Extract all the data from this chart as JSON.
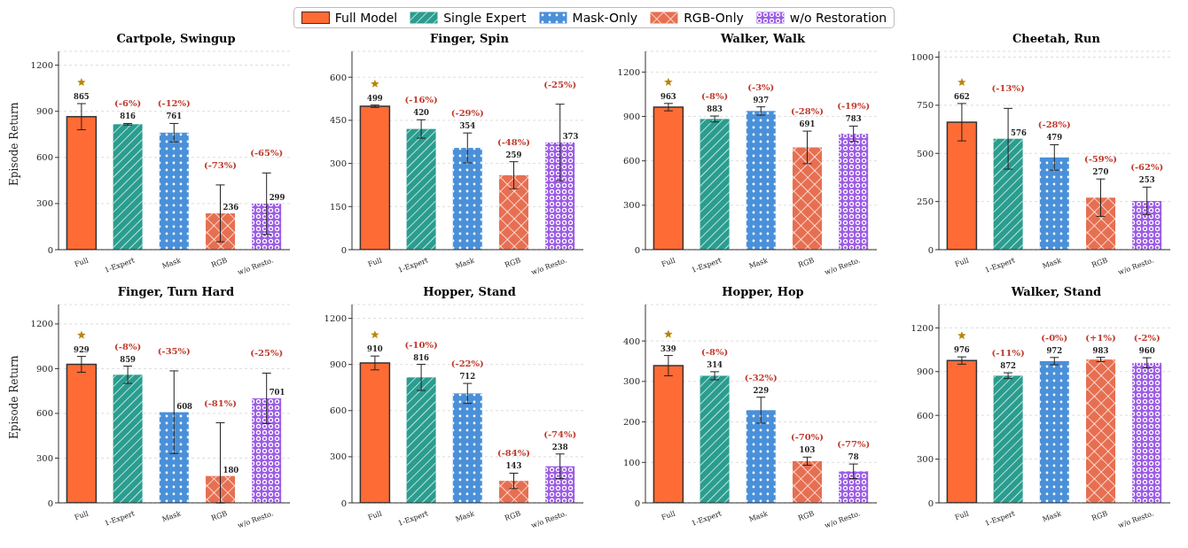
{
  "chart_data": [
    {
      "type": "bar",
      "title": "Cartpole, Swingup",
      "ylabel": "Episode Return",
      "legend": "top",
      "grid": "y",
      "data_labels": true,
      "categories": [
        "Full",
        "1-Expert",
        "Mask",
        "RGB",
        "w/o Resto."
      ],
      "ylim": [
        0,
        1290
      ],
      "yticks": [
        0,
        300,
        600,
        900,
        1200
      ],
      "series": [
        {
          "name": "Full Model",
          "color": "#ff6b35",
          "values": [
            865,
            null,
            null,
            null,
            null
          ],
          "errors": [
            85,
            null,
            null,
            null,
            null
          ]
        },
        {
          "name": "Single Expert",
          "color": "#2a9d8f",
          "values": [
            null,
            816,
            null,
            null,
            null
          ],
          "errors": [
            null,
            5,
            null,
            null,
            null
          ]
        },
        {
          "name": "Mask-Only",
          "color": "#4a90d9",
          "values": [
            null,
            null,
            761,
            null,
            null
          ],
          "errors": [
            null,
            null,
            60,
            null,
            null
          ]
        },
        {
          "name": "RGB-Only",
          "color": "#e76f51",
          "values": [
            null,
            null,
            null,
            236,
            null
          ],
          "errors": [
            null,
            null,
            null,
            185,
            null
          ]
        },
        {
          "name": "w/o Restoration",
          "color": "#9b5de5",
          "values": [
            null,
            null,
            null,
            null,
            299
          ],
          "errors": [
            null,
            null,
            null,
            null,
            200
          ]
        }
      ],
      "annotations": [
        "(-6%)",
        "(-12%)",
        "(-73%)",
        "(-65%)"
      ]
    },
    {
      "type": "bar",
      "title": "Finger, Spin",
      "grid": "y",
      "data_labels": true,
      "categories": [
        "Full",
        "1-Expert",
        "Mask",
        "RGB",
        "w/o Resto."
      ],
      "ylim": [
        0,
        690
      ],
      "yticks": [
        0,
        150,
        300,
        450,
        600
      ],
      "series": [
        {
          "color": "#ff6b35",
          "values": [
            499,
            null,
            null,
            null,
            null
          ],
          "errors": [
            4,
            null,
            null,
            null,
            null
          ]
        },
        {
          "color": "#2a9d8f",
          "values": [
            null,
            420,
            null,
            null,
            null
          ],
          "errors": [
            null,
            32,
            null,
            null,
            null
          ]
        },
        {
          "color": "#4a90d9",
          "values": [
            null,
            null,
            354,
            null,
            null
          ],
          "errors": [
            null,
            null,
            52,
            null,
            null
          ]
        },
        {
          "color": "#e76f51",
          "values": [
            null,
            null,
            null,
            259,
            null
          ],
          "errors": [
            null,
            null,
            null,
            47,
            null
          ]
        },
        {
          "color": "#9b5de5",
          "values": [
            null,
            null,
            null,
            null,
            373
          ],
          "errors": [
            null,
            null,
            null,
            null,
            133
          ]
        }
      ],
      "annotations": [
        "(-16%)",
        "(-29%)",
        "(-48%)",
        "(-25%)"
      ]
    },
    {
      "type": "bar",
      "title": "Walker, Walk",
      "grid": "y",
      "data_labels": true,
      "categories": [
        "Full",
        "1-Expert",
        "Mask",
        "RGB",
        "w/o Resto."
      ],
      "ylim": [
        0,
        1340
      ],
      "yticks": [
        0,
        300,
        600,
        900,
        1200
      ],
      "series": [
        {
          "color": "#ff6b35",
          "values": [
            963,
            null,
            null,
            null,
            null
          ],
          "errors": [
            25,
            null,
            null,
            null,
            null
          ]
        },
        {
          "color": "#2a9d8f",
          "values": [
            null,
            883,
            null,
            null,
            null
          ],
          "errors": [
            null,
            20,
            null,
            null,
            null
          ]
        },
        {
          "color": "#4a90d9",
          "values": [
            null,
            null,
            937,
            null,
            null
          ],
          "errors": [
            null,
            null,
            28,
            null,
            null
          ]
        },
        {
          "color": "#e76f51",
          "values": [
            null,
            null,
            null,
            691,
            null
          ],
          "errors": [
            null,
            null,
            null,
            110,
            null
          ]
        },
        {
          "color": "#9b5de5",
          "values": [
            null,
            null,
            null,
            null,
            783
          ],
          "errors": [
            null,
            null,
            null,
            null,
            52
          ]
        }
      ],
      "annotations": [
        "(-8%)",
        "(-3%)",
        "(-28%)",
        "(-19%)"
      ]
    },
    {
      "type": "bar",
      "title": "Cheetah, Run",
      "grid": "y",
      "data_labels": true,
      "categories": [
        "Full",
        "1-Expert",
        "Mask",
        "RGB",
        "w/o Resto."
      ],
      "ylim": [
        0,
        1030
      ],
      "yticks": [
        0,
        250,
        500,
        750,
        1000
      ],
      "series": [
        {
          "color": "#ff6b35",
          "values": [
            662,
            null,
            null,
            null,
            null
          ],
          "errors": [
            97,
            null,
            null,
            null,
            null
          ]
        },
        {
          "color": "#2a9d8f",
          "values": [
            null,
            576,
            null,
            null,
            null
          ],
          "errors": [
            null,
            158,
            null,
            null,
            null
          ]
        },
        {
          "color": "#4a90d9",
          "values": [
            null,
            null,
            479,
            null,
            null
          ],
          "errors": [
            null,
            null,
            66,
            null,
            null
          ]
        },
        {
          "color": "#e76f51",
          "values": [
            null,
            null,
            null,
            270,
            null
          ],
          "errors": [
            null,
            null,
            null,
            97,
            null
          ]
        },
        {
          "color": "#9b5de5",
          "values": [
            null,
            null,
            null,
            null,
            253
          ],
          "errors": [
            null,
            null,
            null,
            null,
            72
          ]
        }
      ],
      "annotations": [
        "(-13%)",
        "(-28%)",
        "(-59%)",
        "(-62%)"
      ]
    },
    {
      "type": "bar",
      "title": "Finger, Turn Hard",
      "ylabel": "Episode Return",
      "grid": "y",
      "data_labels": true,
      "categories": [
        "Full",
        "1-Expert",
        "Mask",
        "RGB",
        "w/o Resto."
      ],
      "ylim": [
        0,
        1330
      ],
      "yticks": [
        0,
        300,
        600,
        900,
        1200
      ],
      "series": [
        {
          "color": "#ff6b35",
          "values": [
            929,
            null,
            null,
            null,
            null
          ],
          "errors": [
            53,
            null,
            null,
            null,
            null
          ]
        },
        {
          "color": "#2a9d8f",
          "values": [
            null,
            859,
            null,
            null,
            null
          ],
          "errors": [
            null,
            58,
            null,
            null,
            null
          ]
        },
        {
          "color": "#4a90d9",
          "values": [
            null,
            null,
            608,
            null,
            null
          ],
          "errors": [
            null,
            null,
            277,
            null,
            null
          ]
        },
        {
          "color": "#e76f51",
          "values": [
            null,
            null,
            null,
            180,
            null
          ],
          "errors": [
            null,
            null,
            null,
            [
              0,
              537
            ],
            null
          ]
        },
        {
          "color": "#9b5de5",
          "values": [
            null,
            null,
            null,
            null,
            701
          ],
          "errors": [
            null,
            null,
            null,
            null,
            169
          ]
        }
      ],
      "annotations": [
        "(-8%)",
        "(-35%)",
        "(-81%)",
        "(-25%)"
      ]
    },
    {
      "type": "bar",
      "title": "Hopper, Stand",
      "grid": "y",
      "data_labels": true,
      "categories": [
        "Full",
        "1-Expert",
        "Mask",
        "RGB",
        "w/o Resto."
      ],
      "ylim": [
        0,
        1290
      ],
      "yticks": [
        0,
        300,
        600,
        900,
        1200
      ],
      "series": [
        {
          "color": "#ff6b35",
          "values": [
            910,
            null,
            null,
            null,
            null
          ],
          "errors": [
            45,
            null,
            null,
            null,
            null
          ]
        },
        {
          "color": "#2a9d8f",
          "values": [
            null,
            816,
            null,
            null,
            null
          ],
          "errors": [
            null,
            85,
            null,
            null,
            null
          ]
        },
        {
          "color": "#4a90d9",
          "values": [
            null,
            null,
            712,
            null,
            null
          ],
          "errors": [
            null,
            null,
            65,
            null,
            null
          ]
        },
        {
          "color": "#e76f51",
          "values": [
            null,
            null,
            null,
            143,
            null
          ],
          "errors": [
            null,
            null,
            null,
            50,
            null
          ]
        },
        {
          "color": "#9b5de5",
          "values": [
            null,
            null,
            null,
            null,
            238
          ],
          "errors": [
            null,
            null,
            null,
            null,
            80
          ]
        }
      ],
      "annotations": [
        "(-10%)",
        "(-22%)",
        "(-84%)",
        "(-74%)"
      ]
    },
    {
      "type": "bar",
      "title": "Hopper, Hop",
      "grid": "y",
      "data_labels": true,
      "categories": [
        "Full",
        "1-Expert",
        "Mask",
        "RGB",
        "w/o Resto."
      ],
      "ylim": [
        0,
        490
      ],
      "yticks": [
        0,
        100,
        200,
        300,
        400
      ],
      "series": [
        {
          "color": "#ff6b35",
          "values": [
            339,
            null,
            null,
            null,
            null
          ],
          "errors": [
            25,
            null,
            null,
            null,
            null
          ]
        },
        {
          "color": "#2a9d8f",
          "values": [
            null,
            314,
            null,
            null,
            null
          ],
          "errors": [
            null,
            10,
            null,
            null,
            null
          ]
        },
        {
          "color": "#4a90d9",
          "values": [
            null,
            null,
            229,
            null,
            null
          ],
          "errors": [
            null,
            null,
            32,
            null,
            null
          ]
        },
        {
          "color": "#e76f51",
          "values": [
            null,
            null,
            null,
            103,
            null
          ],
          "errors": [
            null,
            null,
            null,
            10,
            null
          ]
        },
        {
          "color": "#9b5de5",
          "values": [
            null,
            null,
            null,
            null,
            78
          ],
          "errors": [
            null,
            null,
            null,
            null,
            18
          ]
        }
      ],
      "annotations": [
        "(-8%)",
        "(-32%)",
        "(-70%)",
        "(-77%)"
      ]
    },
    {
      "type": "bar",
      "title": "Walker, Stand",
      "grid": "y",
      "data_labels": true,
      "categories": [
        "Full",
        "1-Expert",
        "Mask",
        "RGB",
        "w/o Resto."
      ],
      "ylim": [
        0,
        1360
      ],
      "yticks": [
        0,
        300,
        600,
        900,
        1200
      ],
      "series": [
        {
          "color": "#ff6b35",
          "values": [
            976,
            null,
            null,
            null,
            null
          ],
          "errors": [
            25,
            null,
            null,
            null,
            null
          ]
        },
        {
          "color": "#2a9d8f",
          "values": [
            null,
            872,
            null,
            null,
            null
          ],
          "errors": [
            null,
            20,
            null,
            null,
            null
          ]
        },
        {
          "color": "#4a90d9",
          "values": [
            null,
            null,
            972,
            null,
            null
          ],
          "errors": [
            null,
            null,
            25,
            null,
            null
          ]
        },
        {
          "color": "#e76f51",
          "values": [
            null,
            null,
            null,
            983,
            null
          ],
          "errors": [
            null,
            null,
            null,
            15,
            null
          ]
        },
        {
          "color": "#9b5de5",
          "values": [
            null,
            null,
            null,
            null,
            960
          ],
          "errors": [
            null,
            null,
            null,
            null,
            35
          ]
        }
      ],
      "annotations": [
        "(-11%)",
        "(-0%)",
        "(+1%)",
        "(-2%)"
      ]
    }
  ]
}
